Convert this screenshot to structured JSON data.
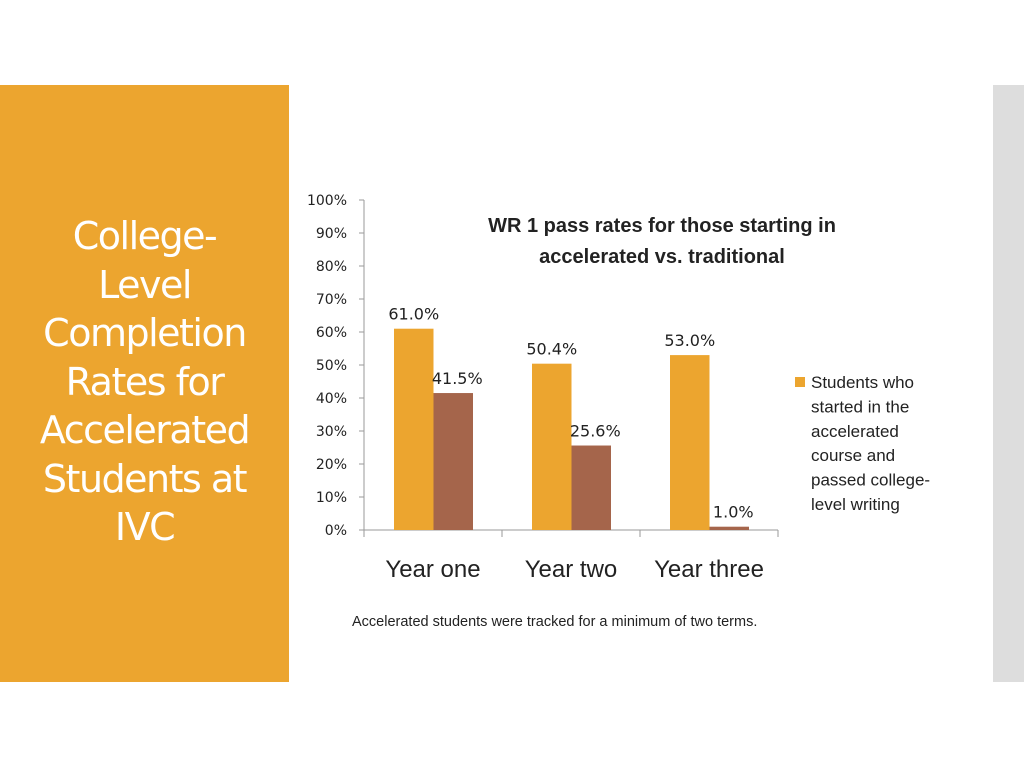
{
  "slide": {
    "title_lines": [
      "College-",
      "Level",
      "Completion",
      "Rates for",
      "Accelerated",
      "Students at",
      "IVC"
    ]
  },
  "colors": {
    "accent": "#eca52f",
    "series_accelerated": "#eca52f",
    "series_traditional": "#a5654b",
    "right_bar": "#dddddd"
  },
  "chart_data": {
    "type": "bar",
    "title_lines": [
      "WR 1 pass rates for those starting in",
      "accelerated vs. traditional"
    ],
    "categories": [
      "Year one",
      "Year two",
      "Year three"
    ],
    "series": [
      {
        "name": "Students who started in the accelerated course and passed college-level writing",
        "legend_lines": [
          "Students who",
          "started in the",
          "accelerated",
          "course and",
          "passed college-",
          "level writing"
        ],
        "values": [
          61.0,
          50.4,
          53.0
        ],
        "labels": [
          "61.0%",
          "50.4%",
          "53.0%"
        ],
        "color": "#eca52f"
      },
      {
        "values": [
          41.5,
          25.6,
          1.0
        ],
        "labels": [
          "41.5%",
          "25.6%",
          "1.0%"
        ],
        "color": "#a5654b"
      }
    ],
    "y_ticks": [
      "0%",
      "10%",
      "20%",
      "30%",
      "40%",
      "50%",
      "60%",
      "70%",
      "80%",
      "90%",
      "100%"
    ],
    "ylim": [
      0,
      100
    ],
    "grid": false,
    "legend_position": "right"
  },
  "footnote": "Accelerated students were tracked for a minimum of two terms."
}
